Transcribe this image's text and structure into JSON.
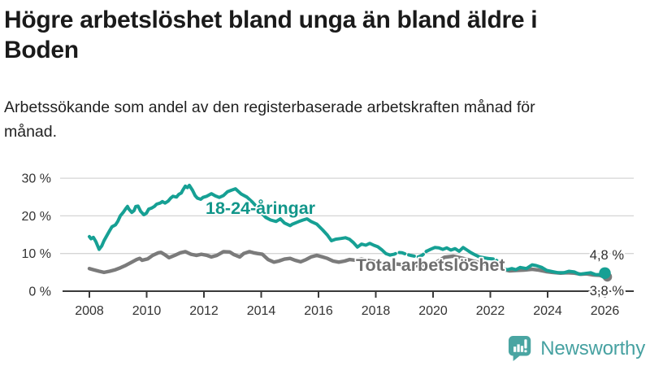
{
  "chart_data": {
    "type": "line",
    "title": "Högre arbetslöshet bland unga än bland äldre i Boden",
    "subtitle": "Arbetssökande som andel av den registerbaserade arbetskraften månad för månad.",
    "unit": "%",
    "x_axis": {
      "labels": [
        "2008",
        "2010",
        "2012",
        "2014",
        "2016",
        "2018",
        "2020",
        "2022",
        "2024",
        "2026"
      ],
      "range": [
        2008,
        2026
      ]
    },
    "y_axis": {
      "ticks": [
        30,
        20,
        10,
        0
      ],
      "labels": [
        "30 %",
        "20 %",
        "10 %",
        "0 %"
      ],
      "range": [
        0,
        30
      ],
      "grid": true
    },
    "series": [
      {
        "name": "18-24-åringar",
        "color": "#16a094",
        "end_label": "4,8 %",
        "end_value": 4.8,
        "dashed_ranges": [
          [
            2018.55,
            2019.7
          ],
          [
            2021.85,
            2022.5
          ]
        ],
        "points": [
          [
            2008.0,
            14.5
          ],
          [
            2008.06,
            13.9
          ],
          [
            2008.14,
            14.3
          ],
          [
            2008.23,
            13.1
          ],
          [
            2008.34,
            11.1
          ],
          [
            2008.43,
            12.0
          ],
          [
            2008.51,
            13.4
          ],
          [
            2008.62,
            14.9
          ],
          [
            2008.71,
            16.1
          ],
          [
            2008.79,
            17.1
          ],
          [
            2008.91,
            17.6
          ],
          [
            2008.99,
            18.5
          ],
          [
            2009.08,
            20.0
          ],
          [
            2009.19,
            21.0
          ],
          [
            2009.28,
            22.0
          ],
          [
            2009.33,
            22.5
          ],
          [
            2009.38,
            21.8
          ],
          [
            2009.48,
            20.9
          ],
          [
            2009.56,
            21.4
          ],
          [
            2009.62,
            22.5
          ],
          [
            2009.7,
            22.6
          ],
          [
            2009.79,
            21.2
          ],
          [
            2009.9,
            20.3
          ],
          [
            2009.99,
            20.7
          ],
          [
            2010.07,
            21.8
          ],
          [
            2010.18,
            22.1
          ],
          [
            2010.27,
            22.5
          ],
          [
            2010.35,
            23.1
          ],
          [
            2010.47,
            23.4
          ],
          [
            2010.55,
            23.8
          ],
          [
            2010.64,
            23.4
          ],
          [
            2010.75,
            23.9
          ],
          [
            2010.84,
            24.7
          ],
          [
            2010.92,
            25.2
          ],
          [
            2011.04,
            25.0
          ],
          [
            2011.12,
            25.7
          ],
          [
            2011.21,
            26.1
          ],
          [
            2011.26,
            26.8
          ],
          [
            2011.35,
            27.9
          ],
          [
            2011.42,
            27.5
          ],
          [
            2011.49,
            28.1
          ],
          [
            2011.6,
            26.8
          ],
          [
            2011.69,
            25.4
          ],
          [
            2011.77,
            24.7
          ],
          [
            2011.89,
            24.4
          ],
          [
            2011.97,
            24.9
          ],
          [
            2012.1,
            25.2
          ],
          [
            2012.26,
            25.9
          ],
          [
            2012.4,
            25.3
          ],
          [
            2012.54,
            24.9
          ],
          [
            2012.68,
            25.4
          ],
          [
            2012.82,
            26.4
          ],
          [
            2012.96,
            26.8
          ],
          [
            2013.1,
            27.2
          ],
          [
            2013.3,
            25.8
          ],
          [
            2013.5,
            25.0
          ],
          [
            2013.7,
            23.6
          ],
          [
            2013.9,
            21.9
          ],
          [
            2014.05,
            20.4
          ],
          [
            2014.16,
            19.6
          ],
          [
            2014.33,
            18.9
          ],
          [
            2014.52,
            18.5
          ],
          [
            2014.67,
            19.2
          ],
          [
            2014.81,
            18.1
          ],
          [
            2015.01,
            17.4
          ],
          [
            2015.09,
            17.8
          ],
          [
            2015.32,
            18.5
          ],
          [
            2015.46,
            18.9
          ],
          [
            2015.6,
            19.2
          ],
          [
            2015.74,
            18.5
          ],
          [
            2015.94,
            17.8
          ],
          [
            2016.14,
            16.3
          ],
          [
            2016.31,
            14.9
          ],
          [
            2016.45,
            13.4
          ],
          [
            2016.6,
            13.8
          ],
          [
            2016.79,
            14.0
          ],
          [
            2016.94,
            14.2
          ],
          [
            2017.08,
            13.8
          ],
          [
            2017.22,
            12.9
          ],
          [
            2017.36,
            11.7
          ],
          [
            2017.5,
            12.5
          ],
          [
            2017.65,
            12.2
          ],
          [
            2017.79,
            12.7
          ],
          [
            2017.93,
            12.2
          ],
          [
            2018.07,
            11.8
          ],
          [
            2018.21,
            11.0
          ],
          [
            2018.35,
            10.0
          ],
          [
            2018.5,
            9.6
          ],
          [
            2018.64,
            9.8
          ],
          [
            2018.78,
            10.3
          ],
          [
            2018.92,
            10.2
          ],
          [
            2019.06,
            9.8
          ],
          [
            2019.21,
            9.5
          ],
          [
            2019.49,
            9.1
          ],
          [
            2019.63,
            9.6
          ],
          [
            2019.77,
            10.6
          ],
          [
            2019.91,
            11.1
          ],
          [
            2020.06,
            11.6
          ],
          [
            2020.2,
            11.5
          ],
          [
            2020.34,
            11.1
          ],
          [
            2020.48,
            11.5
          ],
          [
            2020.62,
            10.9
          ],
          [
            2020.77,
            11.3
          ],
          [
            2020.91,
            10.6
          ],
          [
            2021.05,
            11.6
          ],
          [
            2021.19,
            10.9
          ],
          [
            2021.33,
            10.2
          ],
          [
            2021.48,
            9.6
          ],
          [
            2021.62,
            9.1
          ],
          [
            2021.9,
            8.7
          ],
          [
            2022.18,
            8.5
          ],
          [
            2022.33,
            7.2
          ],
          [
            2022.47,
            5.9
          ],
          [
            2022.61,
            5.7
          ],
          [
            2022.75,
            6.0
          ],
          [
            2022.89,
            5.7
          ],
          [
            2023.04,
            6.3
          ],
          [
            2023.26,
            6.0
          ],
          [
            2023.46,
            7.0
          ],
          [
            2023.6,
            6.8
          ],
          [
            2023.8,
            6.3
          ],
          [
            2023.97,
            5.5
          ],
          [
            2024.17,
            5.2
          ],
          [
            2024.37,
            4.9
          ],
          [
            2024.57,
            4.9
          ],
          [
            2024.74,
            5.3
          ],
          [
            2024.94,
            5.1
          ],
          [
            2025.11,
            4.5
          ],
          [
            2025.31,
            4.7
          ],
          [
            2025.5,
            4.9
          ],
          [
            2025.67,
            4.4
          ],
          [
            2025.87,
            4.4
          ],
          [
            2026.0,
            4.8
          ]
        ]
      },
      {
        "name": "Total arbetslöshet",
        "color": "#7b7b7b",
        "end_label": "3,8 %",
        "end_value": 3.8,
        "dashed_ranges": [],
        "points": [
          [
            2008.0,
            6.0
          ],
          [
            2008.14,
            5.7
          ],
          [
            2008.34,
            5.3
          ],
          [
            2008.51,
            5.0
          ],
          [
            2008.71,
            5.3
          ],
          [
            2008.91,
            5.7
          ],
          [
            2009.08,
            6.2
          ],
          [
            2009.28,
            6.9
          ],
          [
            2009.48,
            7.7
          ],
          [
            2009.65,
            8.4
          ],
          [
            2009.76,
            8.7
          ],
          [
            2009.84,
            8.2
          ],
          [
            2010.04,
            8.6
          ],
          [
            2010.21,
            9.5
          ],
          [
            2010.41,
            10.2
          ],
          [
            2010.5,
            10.3
          ],
          [
            2010.61,
            9.8
          ],
          [
            2010.78,
            8.9
          ],
          [
            2010.98,
            9.5
          ],
          [
            2011.18,
            10.2
          ],
          [
            2011.35,
            10.5
          ],
          [
            2011.55,
            9.8
          ],
          [
            2011.74,
            9.5
          ],
          [
            2011.91,
            9.8
          ],
          [
            2012.11,
            9.5
          ],
          [
            2012.26,
            9.1
          ],
          [
            2012.45,
            9.5
          ],
          [
            2012.68,
            10.5
          ],
          [
            2012.9,
            10.4
          ],
          [
            2013.05,
            9.7
          ],
          [
            2013.25,
            9.1
          ],
          [
            2013.39,
            10.0
          ],
          [
            2013.59,
            10.5
          ],
          [
            2013.73,
            10.2
          ],
          [
            2013.87,
            10.0
          ],
          [
            2014.04,
            9.8
          ],
          [
            2014.24,
            8.4
          ],
          [
            2014.44,
            7.7
          ],
          [
            2014.61,
            8.0
          ],
          [
            2014.81,
            8.5
          ],
          [
            2015.01,
            8.7
          ],
          [
            2015.18,
            8.2
          ],
          [
            2015.38,
            7.8
          ],
          [
            2015.57,
            8.4
          ],
          [
            2015.74,
            9.1
          ],
          [
            2015.94,
            9.5
          ],
          [
            2016.14,
            9.1
          ],
          [
            2016.31,
            8.7
          ],
          [
            2016.51,
            8.0
          ],
          [
            2016.71,
            7.7
          ],
          [
            2016.91,
            8.0
          ],
          [
            2017.08,
            8.4
          ],
          [
            2017.3,
            8.2
          ],
          [
            2017.5,
            8.6
          ],
          [
            2017.7,
            8.2
          ],
          [
            2018.0,
            7.8
          ],
          [
            2018.3,
            7.5
          ],
          [
            2018.6,
            7.3
          ],
          [
            2019.0,
            7.0
          ],
          [
            2019.4,
            6.8
          ],
          [
            2019.8,
            7.0
          ],
          [
            2020.1,
            7.6
          ],
          [
            2020.4,
            9.0
          ],
          [
            2020.7,
            9.3
          ],
          [
            2021.0,
            8.8
          ],
          [
            2021.3,
            8.2
          ],
          [
            2021.6,
            7.6
          ],
          [
            2021.9,
            7.0
          ],
          [
            2022.2,
            6.3
          ],
          [
            2022.5,
            5.7
          ],
          [
            2022.66,
            5.4
          ],
          [
            2022.89,
            5.5
          ],
          [
            2023.18,
            5.6
          ],
          [
            2023.46,
            5.8
          ],
          [
            2023.69,
            5.6
          ],
          [
            2023.94,
            5.2
          ],
          [
            2024.17,
            5.0
          ],
          [
            2024.45,
            4.8
          ],
          [
            2024.68,
            4.9
          ],
          [
            2024.94,
            4.8
          ],
          [
            2025.16,
            4.5
          ],
          [
            2025.36,
            4.6
          ],
          [
            2025.59,
            4.3
          ],
          [
            2025.82,
            4.2
          ],
          [
            2026.0,
            3.8
          ]
        ]
      }
    ],
    "legend_position": "inline-labels",
    "colors": {
      "young": "#16a094",
      "total": "#7b7b7b",
      "axis": "#3a3a3a",
      "grid": "#d5d5d5",
      "brand": "#46a1a1"
    }
  },
  "footer": {
    "brand": "Newsworthy"
  }
}
